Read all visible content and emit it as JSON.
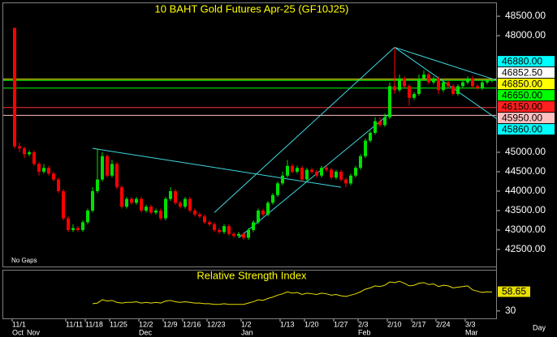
{
  "chart_data": {
    "type": "candlestick",
    "title": "10 BAHT Gold Futures Apr-25 (GF10J25)",
    "footnote": "No Gaps",
    "interval": "Day",
    "up_color": "#00e000",
    "down_color": "#ff0000",
    "categories": [
      "11/1",
      null,
      null,
      null,
      null,
      null,
      null,
      null,
      null,
      null,
      null,
      "11/11",
      null,
      null,
      null,
      "11/18",
      null,
      null,
      null,
      null,
      "11/25",
      null,
      null,
      null,
      null,
      null,
      "12/2",
      null,
      null,
      null,
      null,
      "12/9",
      null,
      null,
      null,
      "12/16",
      null,
      null,
      null,
      null,
      "12/23",
      null,
      null,
      null,
      null,
      null,
      null,
      "1/2",
      null,
      null,
      null,
      null,
      null,
      null,
      null,
      "1/13",
      null,
      null,
      null,
      null,
      "1/20",
      null,
      null,
      null,
      null,
      null,
      "1/27",
      null,
      null,
      null,
      null,
      "2/3",
      null,
      null,
      null,
      null,
      null,
      "2/10",
      null,
      null,
      null,
      null,
      "2/17",
      null,
      null,
      null,
      null,
      "2/24",
      null,
      null,
      null,
      null,
      null,
      "3/3",
      null,
      null,
      null,
      null,
      null
    ],
    "months": [
      "Oct",
      null,
      null,
      "Nov",
      null,
      null,
      null,
      null,
      null,
      null,
      null,
      null,
      null,
      null,
      null,
      null,
      null,
      null,
      null,
      null,
      null,
      null,
      null,
      null,
      null,
      null,
      "Dec",
      null,
      null,
      null,
      null,
      null,
      null,
      null,
      null,
      null,
      null,
      null,
      null,
      null,
      null,
      null,
      null,
      null,
      null,
      null,
      null,
      "Jan",
      null,
      null,
      null,
      null,
      null,
      null,
      null,
      null,
      null,
      null,
      null,
      null,
      null,
      null,
      null,
      null,
      null,
      null,
      null,
      null,
      null,
      null,
      null,
      "Feb",
      null,
      null,
      null,
      null,
      null,
      null,
      null,
      null,
      null,
      null,
      null,
      null,
      null,
      null,
      null,
      null,
      null,
      null,
      null,
      null,
      null,
      "Mar",
      null,
      null,
      null,
      null,
      null
    ],
    "open": [
      48200,
      45150,
      45100,
      44950,
      45000,
      44700,
      44500,
      44600,
      44450,
      44300,
      44000,
      43300,
      43000,
      43050,
      43000,
      43200,
      43500,
      44000,
      44300,
      44900,
      44400,
      44700,
      44100,
      43600,
      43800,
      43700,
      43800,
      43500,
      43600,
      43450,
      43500,
      43300,
      43800,
      44000,
      43700,
      43600,
      43800,
      43500,
      43400,
      43350,
      43200,
      43150,
      43000,
      42950,
      43100,
      42900,
      42850,
      42900,
      42800,
      43000,
      43200,
      43500,
      43400,
      43700,
      43900,
      44200,
      44400,
      44650,
      44500,
      44600,
      44300,
      44550,
      44500,
      44400,
      44600,
      44550,
      44350,
      44500,
      44300,
      44200,
      44400,
      44600,
      44900,
      45300,
      45500,
      45800,
      45700,
      45900,
      46700,
      46600,
      46900,
      46700,
      46400,
      46500,
      46900,
      47000,
      46800,
      46900,
      46600,
      46800,
      46700,
      46500,
      46700,
      46800,
      46900,
      46700,
      46650,
      46800,
      46850
    ],
    "high": [
      48200,
      45250,
      45150,
      45050,
      45050,
      44750,
      44700,
      44650,
      44500,
      44350,
      44050,
      43350,
      43150,
      43100,
      43250,
      43550,
      44100,
      45100,
      45000,
      44950,
      44800,
      44750,
      44150,
      43850,
      43850,
      43850,
      43850,
      43650,
      43650,
      43550,
      43550,
      43850,
      44100,
      44050,
      43750,
      43850,
      43850,
      43550,
      43450,
      43400,
      43250,
      43200,
      43050,
      43150,
      43150,
      42950,
      42950,
      42950,
      43050,
      43250,
      43550,
      43550,
      43750,
      43950,
      44250,
      44500,
      44800,
      44700,
      44650,
      44650,
      44600,
      44600,
      44550,
      44650,
      44650,
      44600,
      44550,
      44550,
      44350,
      44450,
      44650,
      44950,
      45350,
      45550,
      45900,
      45900,
      46000,
      46800,
      47700,
      47000,
      46950,
      46750,
      46550,
      47000,
      47100,
      47050,
      46950,
      46950,
      46850,
      46850,
      46750,
      46750,
      46850,
      46950,
      46950,
      46750,
      46850,
      46880,
      46880
    ],
    "low": [
      45100,
      45000,
      44850,
      44900,
      44650,
      44400,
      44450,
      44400,
      44250,
      43950,
      43250,
      42950,
      42950,
      42950,
      42950,
      43150,
      43450,
      43950,
      44250,
      44350,
      44350,
      44050,
      43550,
      43550,
      43650,
      43650,
      43450,
      43450,
      43400,
      43400,
      43250,
      43250,
      43750,
      43650,
      43550,
      43550,
      43450,
      43350,
      43300,
      43150,
      43100,
      42950,
      42900,
      42900,
      42850,
      42800,
      42800,
      42750,
      42750,
      42950,
      43150,
      43350,
      43350,
      43650,
      43850,
      44150,
      44350,
      44450,
      44450,
      44250,
      44250,
      44450,
      44350,
      44350,
      44500,
      44300,
      44300,
      44250,
      44100,
      44150,
      44350,
      44550,
      44850,
      45250,
      45450,
      45650,
      45650,
      45850,
      46500,
      46550,
      46650,
      46200,
      46350,
      46450,
      46850,
      46750,
      46750,
      46500,
      46550,
      46650,
      46450,
      46450,
      46650,
      46750,
      46650,
      46600,
      46600,
      46750,
      46800
    ],
    "close": [
      45150,
      45100,
      44950,
      45000,
      44700,
      44500,
      44600,
      44450,
      44300,
      44000,
      43300,
      43000,
      43050,
      43000,
      43200,
      43500,
      44000,
      44300,
      44900,
      44400,
      44700,
      44100,
      43600,
      43800,
      43700,
      43800,
      43500,
      43600,
      43450,
      43500,
      43300,
      43800,
      44000,
      43700,
      43600,
      43800,
      43500,
      43400,
      43350,
      43200,
      43150,
      43000,
      42950,
      43100,
      42900,
      42850,
      42900,
      42800,
      43000,
      43200,
      43500,
      43400,
      43700,
      43900,
      44200,
      44400,
      44650,
      44500,
      44600,
      44300,
      44550,
      44500,
      44400,
      44600,
      44550,
      44350,
      44500,
      44300,
      44200,
      44400,
      44600,
      44900,
      45300,
      45500,
      45800,
      45700,
      45900,
      46700,
      46600,
      46900,
      46700,
      46400,
      46500,
      46900,
      47000,
      46800,
      46900,
      46600,
      46800,
      46700,
      46500,
      46700,
      46800,
      46900,
      46700,
      46650,
      46800,
      46850,
      46852.5
    ],
    "ylim": [
      42040,
      48855
    ],
    "yticks": [
      {
        "value": 48500,
        "label": "48500.00"
      },
      {
        "value": 48000,
        "label": "48000.00"
      },
      {
        "value": 45000,
        "label": "45000.00"
      },
      {
        "value": 44500,
        "label": "44500.00"
      },
      {
        "value": 44000,
        "label": "44000.00"
      },
      {
        "value": 43500,
        "label": "43500.00"
      },
      {
        "value": 43000,
        "label": "43000.00"
      },
      {
        "value": 42500,
        "label": "42500.00"
      }
    ],
    "levels": [
      {
        "value": 46880,
        "label": "46880.00",
        "color": "#00ffff",
        "line": "#ffff00"
      },
      {
        "value": 46852.5,
        "label": "46852.50",
        "color": "#ffffff"
      },
      {
        "value": 46850,
        "label": "46850.00",
        "color": "#ffff00",
        "line": "#00ff00"
      },
      {
        "value": 46650,
        "label": "46650.00",
        "color": "#00ff00",
        "line": "#00ff00"
      },
      {
        "value": 46150,
        "label": "46150.00",
        "color": "#ff2020",
        "line": "#ff3030"
      },
      {
        "value": 45950,
        "label": "45950.00",
        "color": "#ffc0c0",
        "line": "#ffc0c0"
      },
      {
        "value": 45860,
        "label": "45860.00",
        "color": "#00ffff"
      }
    ],
    "trendline_color": "#40d8e0",
    "trendlines": [
      {
        "x": [
          16,
          67
        ],
        "y": [
          45100,
          44100
        ]
      },
      {
        "x": [
          41,
          78
        ],
        "y": [
          43450,
          47700
        ]
      },
      {
        "x": [
          46,
          77
        ],
        "y": [
          42800,
          46000
        ]
      },
      {
        "x": [
          78,
          99
        ],
        "y": [
          47700,
          46850
        ]
      },
      {
        "x": [
          78,
          99
        ],
        "y": [
          47700,
          45860
        ]
      }
    ],
    "rsi": {
      "title": "Relative Strength Index",
      "color": "#e8e000",
      "ylim": [
        20,
        90
      ],
      "yticks": [
        30
      ],
      "values": [
        null,
        null,
        null,
        null,
        null,
        null,
        null,
        null,
        null,
        null,
        null,
        null,
        null,
        null,
        null,
        null,
        41,
        42,
        47,
        45,
        46,
        43,
        42,
        43,
        43,
        44,
        42,
        43,
        42,
        43,
        42,
        45,
        46,
        44,
        43,
        44,
        43,
        42,
        42,
        41,
        41,
        40,
        40,
        41,
        40,
        40,
        40,
        40,
        42,
        44,
        47,
        46,
        49,
        51,
        54,
        56,
        59,
        57,
        58,
        55,
        57,
        56,
        55,
        57,
        56,
        54,
        55,
        53,
        52,
        54,
        56,
        59,
        63,
        65,
        68,
        67,
        69,
        74,
        73,
        75,
        72,
        68,
        69,
        72,
        73,
        70,
        71,
        67,
        69,
        68,
        65,
        66,
        67,
        68,
        62,
        60,
        58,
        59,
        58.65
      ]
    }
  }
}
